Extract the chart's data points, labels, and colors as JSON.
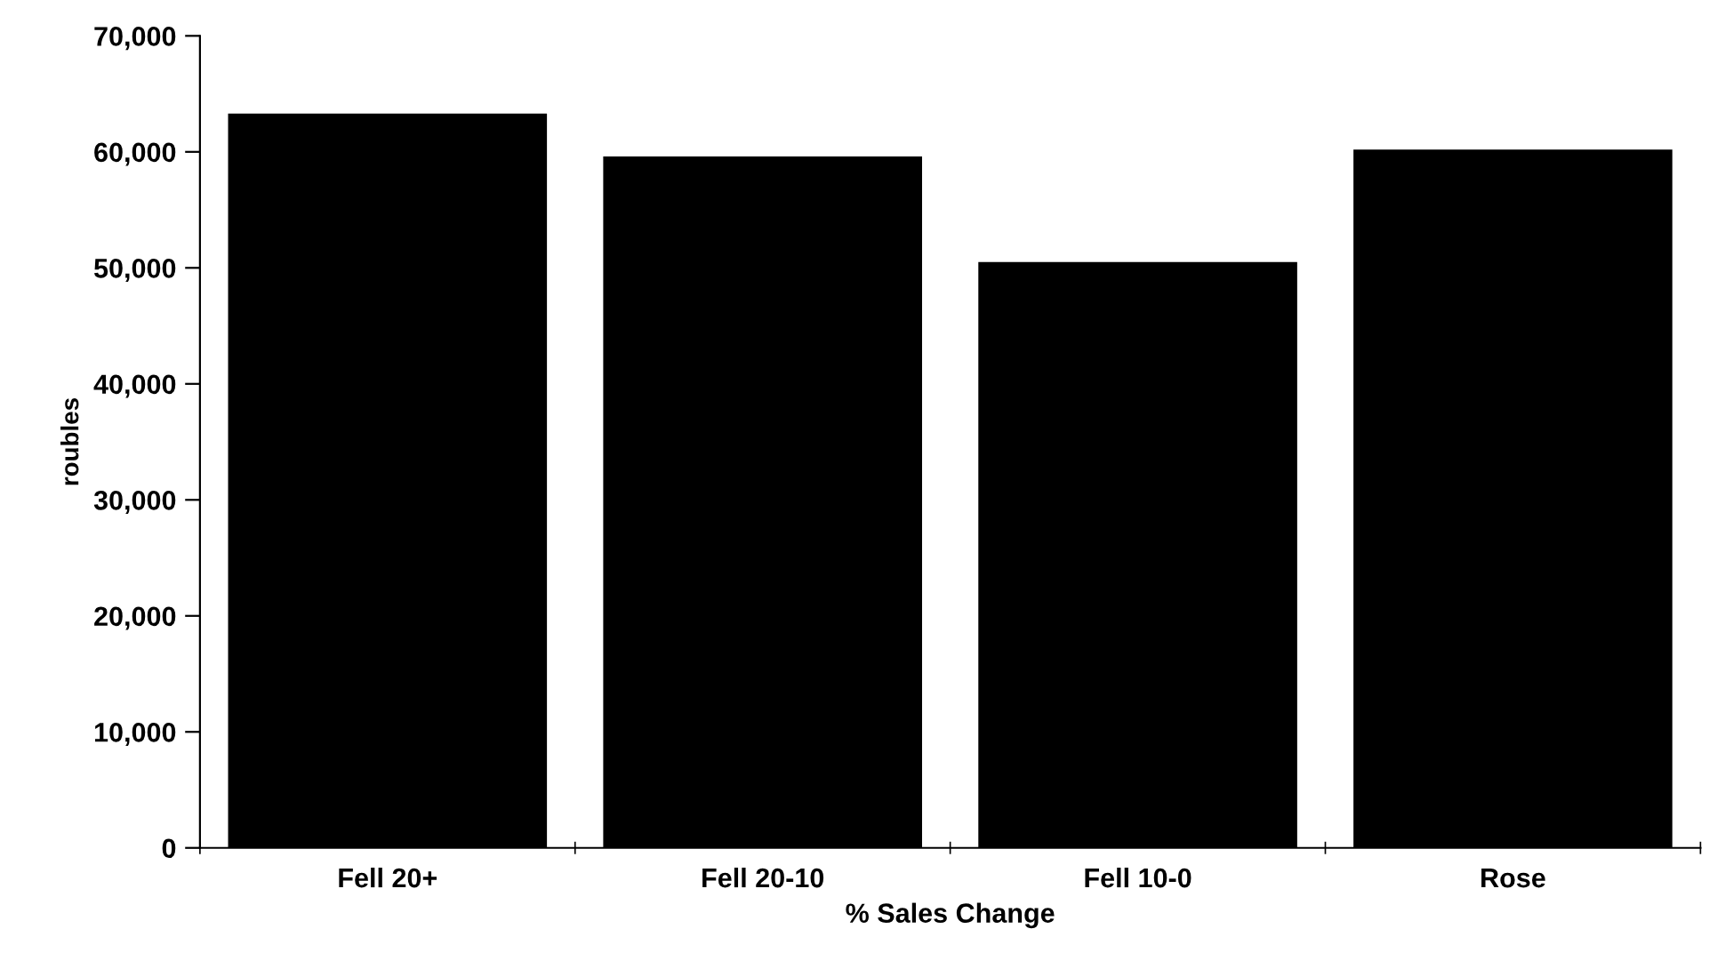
{
  "chart_data": {
    "type": "bar",
    "categories": [
      "Fell 20+",
      "Fell 20-10",
      "Fell 10-0",
      "Rose"
    ],
    "values": [
      63300,
      59600,
      50500,
      60200
    ],
    "color": "#000000",
    "xlabel": "% Sales Change",
    "ylabel": "roubles",
    "ylim": [
      0,
      70000
    ],
    "yticks": [
      {
        "value": 0,
        "label": "0"
      },
      {
        "value": 10000,
        "label": "10,000"
      },
      {
        "value": 20000,
        "label": "20,000"
      },
      {
        "value": 30000,
        "label": "30,000"
      },
      {
        "value": 40000,
        "label": "40,000"
      },
      {
        "value": 50000,
        "label": "50,000"
      },
      {
        "value": 60000,
        "label": "60,000"
      },
      {
        "value": 70000,
        "label": "70,000"
      }
    ],
    "grid": false,
    "legend": false
  }
}
